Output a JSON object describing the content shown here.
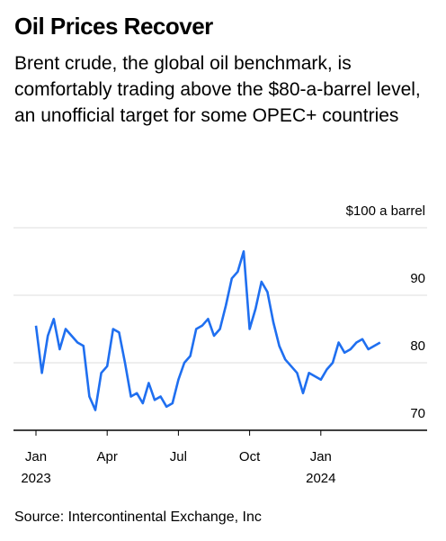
{
  "chart_data": {
    "type": "line",
    "title": "Oil Prices Recover",
    "subtitle": "Brent crude, the global oil benchmark, is comfortably trading above the $80-a-barrel level, an unofficial target for some OPEC+ countries",
    "source": "Source: Intercontinental Exchange, Inc",
    "x": [
      "2023-01",
      "2023-01",
      "2023-01",
      "2023-01",
      "2023-02",
      "2023-02",
      "2023-02",
      "2023-02",
      "2023-03",
      "2023-03",
      "2023-03",
      "2023-03",
      "2023-04",
      "2023-04",
      "2023-04",
      "2023-04",
      "2023-05",
      "2023-05",
      "2023-05",
      "2023-05",
      "2023-06",
      "2023-06",
      "2023-06",
      "2023-06",
      "2023-07",
      "2023-07",
      "2023-07",
      "2023-07",
      "2023-08",
      "2023-08",
      "2023-08",
      "2023-08",
      "2023-09",
      "2023-09",
      "2023-09",
      "2023-09",
      "2023-10",
      "2023-10",
      "2023-10",
      "2023-10",
      "2023-11",
      "2023-11",
      "2023-11",
      "2023-11",
      "2023-12",
      "2023-12",
      "2023-12",
      "2023-12",
      "2024-01",
      "2024-01",
      "2024-01",
      "2024-01",
      "2024-02",
      "2024-02",
      "2024-02",
      "2024-02",
      "2024-03",
      "2024-03"
    ],
    "series": [
      {
        "name": "Brent crude",
        "color": "#1f6ff0",
        "values": [
          85.5,
          78.5,
          84,
          86.5,
          82,
          85,
          84,
          83,
          82.5,
          75,
          73,
          78.5,
          79.5,
          85,
          84.5,
          80,
          75,
          75.5,
          74,
          77,
          74.5,
          75,
          73.5,
          74,
          77.5,
          80,
          81,
          85,
          85.5,
          86.5,
          84,
          85,
          88.5,
          92.5,
          93.5,
          96.5,
          85,
          88,
          92,
          90.5,
          86,
          82.5,
          80.5,
          79.5,
          78.5,
          75.5,
          78.5,
          78,
          77.5,
          79,
          80,
          83,
          81.5,
          82,
          83,
          83.5,
          82,
          83
        ]
      }
    ],
    "xlim": [
      "2023-01",
      "2024-04"
    ],
    "xticks": [
      {
        "value": "2023-01",
        "label": "Jan"
      },
      {
        "value": "2023-04",
        "label": "Apr"
      },
      {
        "value": "2023-07",
        "label": "Jul"
      },
      {
        "value": "2023-10",
        "label": "Oct"
      },
      {
        "value": "2024-01",
        "label": "Jan"
      }
    ],
    "year_labels": [
      {
        "value": "2023-01",
        "label": "2023"
      },
      {
        "value": "2024-01",
        "label": "2024"
      }
    ],
    "ylim": [
      70,
      100
    ],
    "yticks": [
      70,
      80,
      90,
      {
        "value": 100,
        "label": "$100 a barrel"
      }
    ],
    "grid": true
  }
}
